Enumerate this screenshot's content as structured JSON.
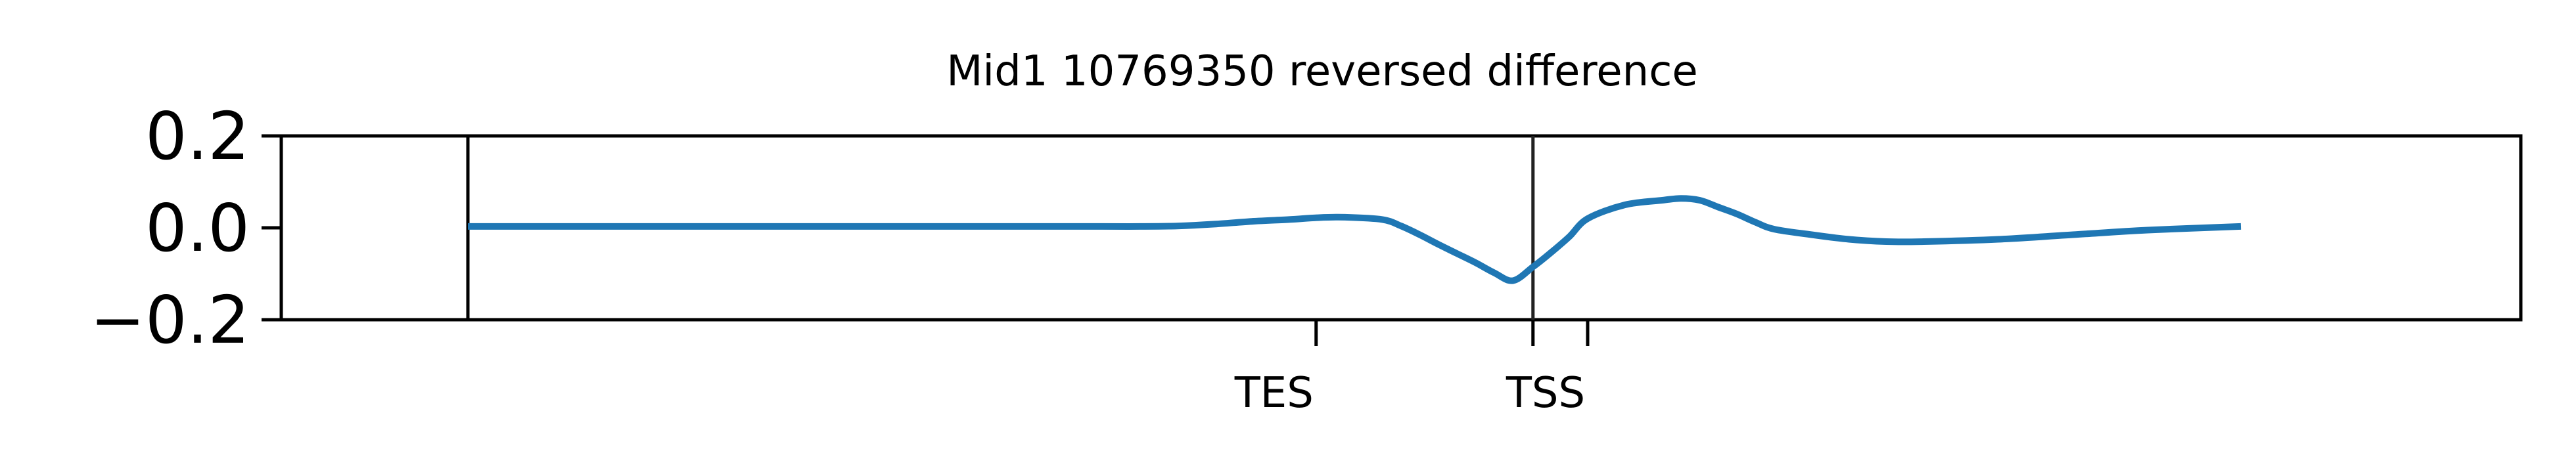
{
  "chart_data": {
    "type": "line",
    "title": "Mid1 10769350 reversed difference",
    "xlabel": "",
    "ylabel": "",
    "ylim": [
      -0.2,
      0.2
    ],
    "yticks": [
      {
        "value": 0.2,
        "label": "0.2"
      },
      {
        "value": 0.0,
        "label": "0.0"
      },
      {
        "value": -0.2,
        "label": "−0.2"
      }
    ],
    "xlim": [
      -0.1,
      1.1
    ],
    "xticks": [
      {
        "value": 0.4545,
        "label": "TES"
      },
      {
        "value": 0.6,
        "label": "TSS"
      }
    ],
    "extra_tick_positions": [
      0.5707
    ],
    "minor_tick_positions": [
      0.0,
      1.1
    ],
    "vline_x": 0.5707,
    "grid": false,
    "series": [
      {
        "color": "#1f77b4",
        "x": [
          0.0,
          0.1,
          0.2,
          0.3,
          0.34,
          0.36,
          0.38,
          0.4,
          0.42,
          0.44,
          0.455,
          0.47,
          0.49,
          0.5,
          0.51,
          0.52,
          0.53,
          0.54,
          0.55,
          0.56,
          0.5707,
          0.58,
          0.59,
          0.6,
          0.62,
          0.64,
          0.65,
          0.66,
          0.67,
          0.68,
          0.69,
          0.7,
          0.72,
          0.74,
          0.76,
          0.78,
          0.82,
          0.86,
          0.9,
          0.95
        ],
        "values": [
          0.003,
          0.003,
          0.003,
          0.003,
          0.003,
          0.003,
          0.004,
          0.008,
          0.014,
          0.018,
          0.022,
          0.023,
          0.018,
          0.004,
          -0.015,
          -0.036,
          -0.056,
          -0.076,
          -0.098,
          -0.115,
          -0.085,
          -0.055,
          -0.02,
          0.02,
          0.05,
          0.06,
          0.064,
          0.06,
          0.045,
          0.03,
          0.012,
          -0.003,
          -0.015,
          -0.025,
          -0.03,
          -0.03,
          -0.025,
          -0.015,
          -0.005,
          0.003
        ]
      }
    ]
  }
}
